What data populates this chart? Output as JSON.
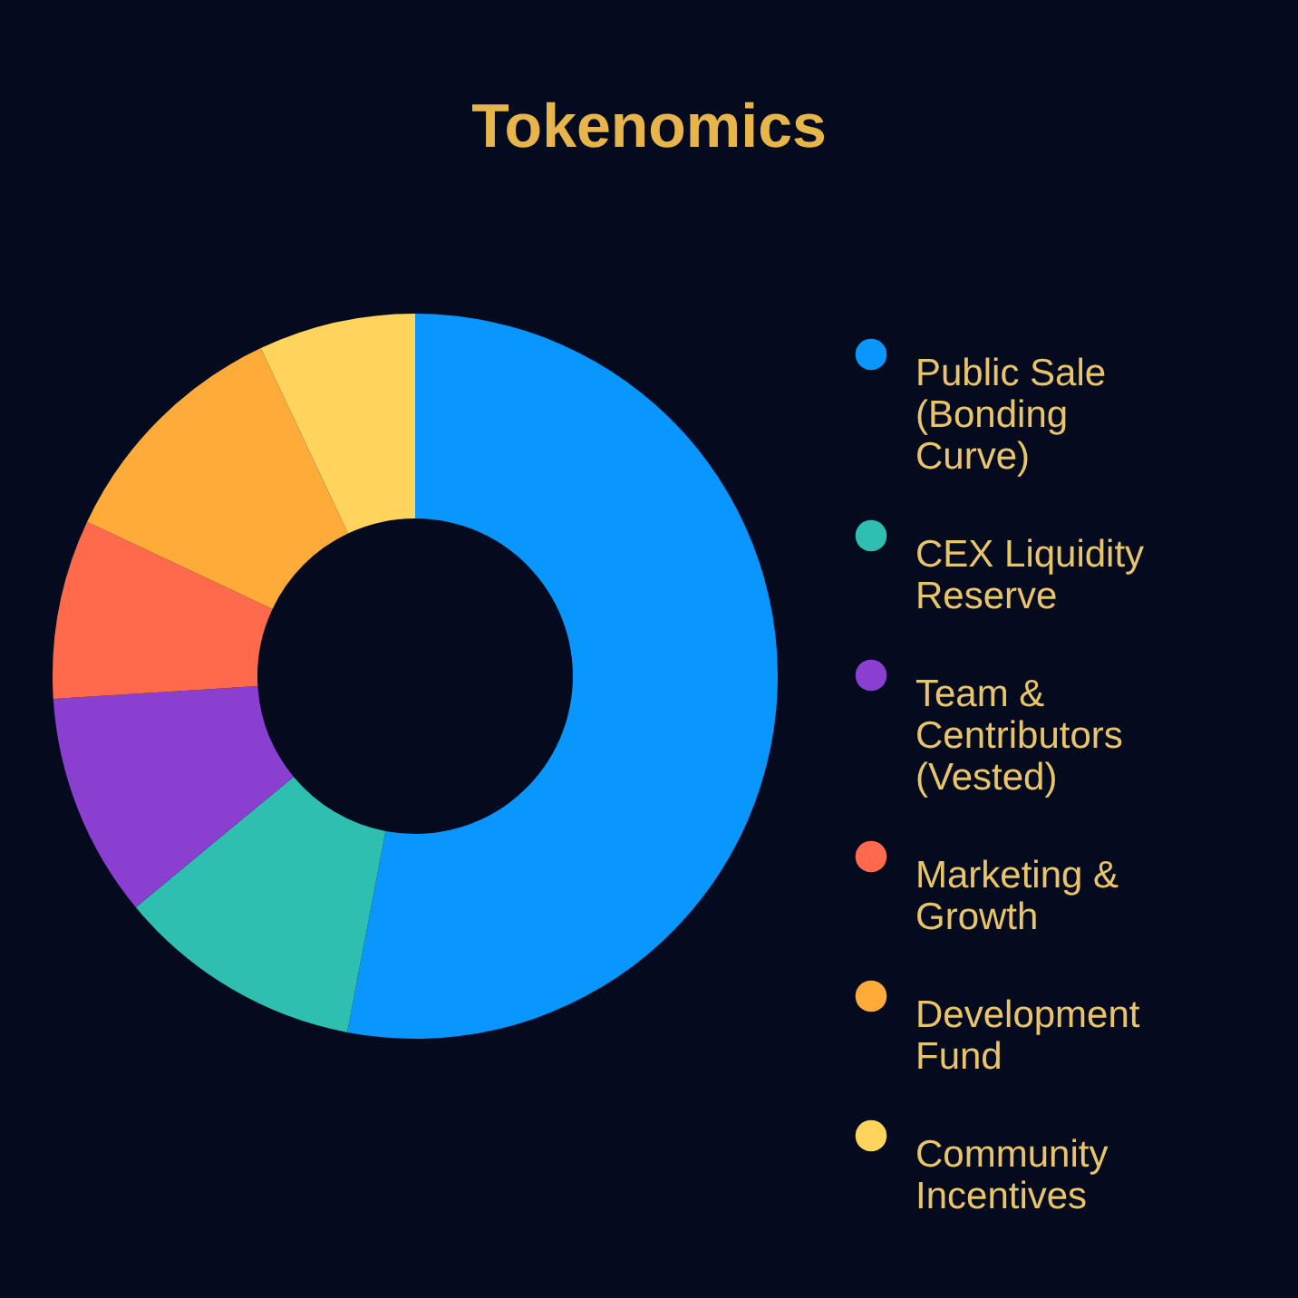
{
  "chart_data": {
    "type": "donut",
    "title": "Tokenomics",
    "categories": [
      "Public Sale (Bonding Curve)",
      "CEX Liquidity Reserve",
      "Team & Centributors (Vested)",
      "Marketing & Growth",
      "Development Fund",
      "Community Incentives"
    ],
    "values": [
      53,
      11,
      10,
      8,
      11,
      7
    ],
    "colors": [
      "#0a96ff",
      "#2ebfb0",
      "#8a3fd1",
      "#ff6a4d",
      "#ffab3a",
      "#ffd45c"
    ],
    "legend": "right"
  }
}
